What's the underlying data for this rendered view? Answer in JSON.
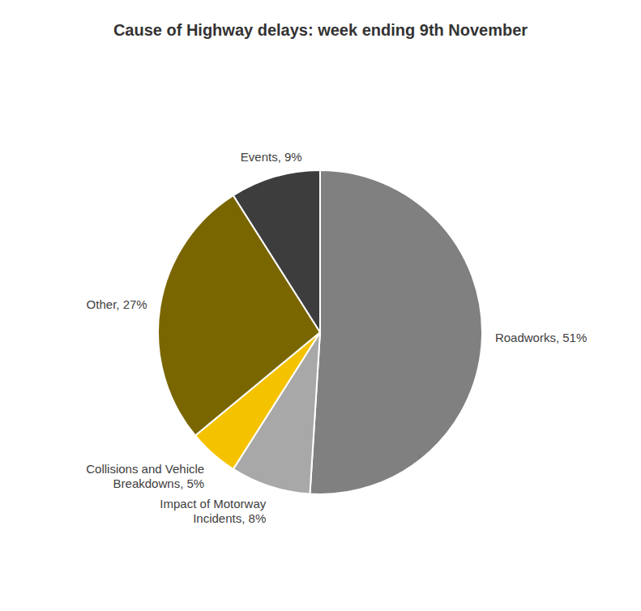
{
  "chart_data": {
    "type": "pie",
    "title": "Cause of Highway delays: week ending 9th November",
    "categories": [
      "Roadworks, 51%",
      "Impact of Motorway\nIncidents, 8%",
      "Collisions and Vehicle\nBreakdowns, 5%",
      "Other, 27%",
      "Events, 9%"
    ],
    "values": [
      51,
      8,
      5,
      27,
      9
    ],
    "colors": [
      "#808080",
      "#a8a8a8",
      "#f5c200",
      "#7a6600",
      "#3d3d3d"
    ]
  }
}
